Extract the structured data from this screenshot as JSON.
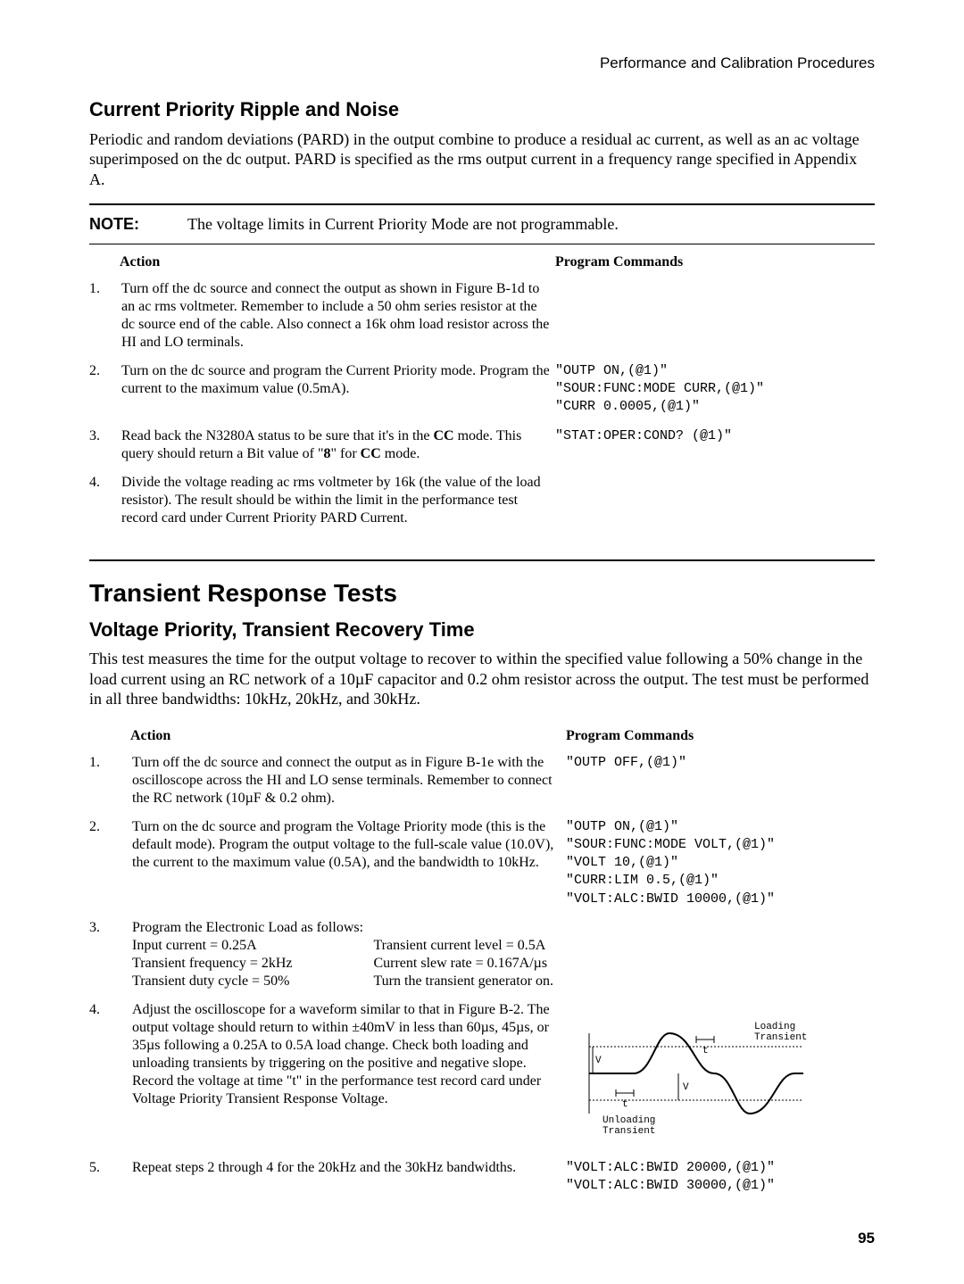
{
  "header_right": "Performance and Calibration Procedures",
  "section1": {
    "title": "Current Priority Ripple and Noise",
    "intro": "Periodic and random deviations (PARD) in the output combine to produce a residual ac current, as well as an ac voltage superimposed on the dc output. PARD is specified as the rms output current in a frequency range specified in Appendix A.",
    "note_label": "NOTE:",
    "note_text": "The voltage limits in Current Priority Mode are not programmable.",
    "col_action": "Action",
    "col_cmd": "Program Commands",
    "rows": [
      {
        "n": "1.",
        "action": "Turn off the dc source and connect the output as shown in Figure B-1d to an ac rms voltmeter. Remember to include a 50 ohm series resistor at the dc source end of the cable. Also connect a 16k ohm load resistor across the HI and LO terminals.",
        "cmd": ""
      },
      {
        "n": "2.",
        "action": "Turn on the dc source and program the Current Priority mode. Program the current to the maximum value (0.5mA).",
        "cmd": "\"OUTP ON,(@1)\"\n\"SOUR:FUNC:MODE CURR,(@1)\"\n\"CURR 0.0005,(@1)\""
      },
      {
        "n": "3.",
        "action_html": "Read back the N3280A status to be sure that it's in the <b>CC</b> mode. This query should return a Bit value of \"<b>8</b>\" for <b>CC</b> mode.",
        "cmd": "\"STAT:OPER:COND? (@1)\""
      },
      {
        "n": "4.",
        "action": "Divide the voltage reading ac rms voltmeter by 16k (the value of the load resistor). The result should be within the limit in the performance test record card under Current Priority PARD Current.",
        "cmd": ""
      }
    ]
  },
  "section2": {
    "title": "Transient Response Tests",
    "subtitle": "Voltage Priority, Transient Recovery Time",
    "intro": "This test measures the time for the output voltage to recover to within the specified value following a 50% change in the load current using an RC network of a 10µF capacitor and 0.2 ohm resistor across the output. The test must be performed in all three bandwidths: 10kHz, 20kHz, and 30kHz.",
    "col_action": "Action",
    "col_cmd": "Program Commands",
    "rows": [
      {
        "n": "1.",
        "action": "Turn off the dc source and connect the output as in Figure B-1e with the oscilloscope across the HI and LO sense terminals. Remember to connect the RC network (10µF & 0.2 ohm).",
        "cmd": "\"OUTP OFF,(@1)\""
      },
      {
        "n": "2.",
        "action": "Turn on the dc source and program the Voltage Priority mode (this is the default mode). Program the output voltage to the full-scale value (10.0V), the current to the maximum value (0.5A), and the bandwidth to 10kHz.",
        "cmd": "\"OUTP ON,(@1)\"\n\"SOUR:FUNC:MODE VOLT,(@1)\"\n\"VOLT 10,(@1)\"\n\"CURR:LIM 0.5,(@1)\"\n\"VOLT:ALC:BWID 10000,(@1)\""
      },
      {
        "n": "3.",
        "action_html": "Program the Electronic Load as follows:<div class=\"two-col\"><div>Input current = 0.25A<br>Transient frequency = 2kHz<br>Transient duty cycle = 50%</div><div>Transient current level = 0.5A<br>Current slew rate = 0.167A/µs<br>Turn the transient generator on.</div></div>",
        "cmd": ""
      },
      {
        "n": "4.",
        "action": "Adjust the oscilloscope for a waveform similar to that in Figure B-2. The output voltage should return to within ±40mV in less than 60µs, 45µs, or 35µs following a 0.25A to 0.5A load change. Check both loading and unloading transients by triggering on the positive and negative slope. Record the voltage at time \"t\" in the performance test record card under Voltage Priority Transient Response Voltage.",
        "cmd": "",
        "diagram": true
      },
      {
        "n": "5.",
        "action": "Repeat steps 2 through 4 for the 20kHz and the 30kHz bandwidths.",
        "cmd": "\"VOLT:ALC:BWID 20000,(@1)\"\n\"VOLT:ALC:BWID 30000,(@1)\""
      }
    ],
    "diagram_labels": {
      "loading": "Loading",
      "transient": "Transient",
      "unloading": "Unloading",
      "v": "V",
      "t": "t"
    }
  },
  "page_number": "95"
}
